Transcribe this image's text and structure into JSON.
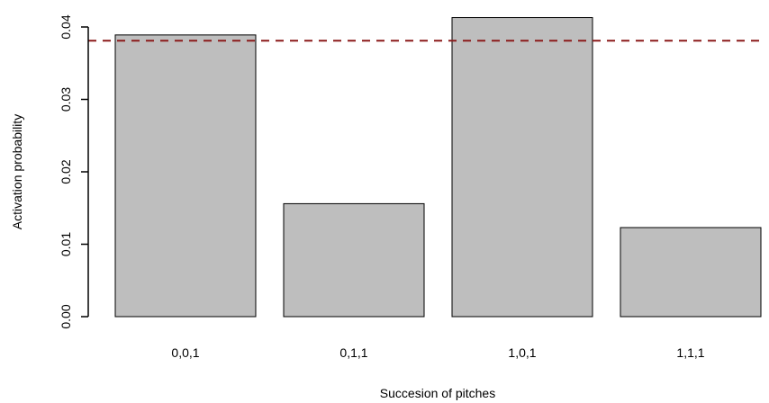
{
  "chart_data": {
    "type": "bar",
    "categories": [
      "0,0,1",
      "0,1,1",
      "1,0,1",
      "1,1,1"
    ],
    "values": [
      0.0389,
      0.0156,
      0.0413,
      0.0123
    ],
    "xlabel": "Succesion of pitches",
    "ylabel": "Activation probability",
    "ylim": [
      0,
      0.04
    ],
    "yticks": [
      "0.00",
      "0.01",
      "0.02",
      "0.03",
      "0.04"
    ],
    "ytick_values": [
      0,
      0.01,
      0.02,
      0.03,
      0.04
    ],
    "reference_line": {
      "value": 0.0381,
      "style": "dashed",
      "color": "#8b1a1a"
    },
    "bar_fill": "#bebebe",
    "bar_stroke": "#000000",
    "grid": false,
    "legend": "none"
  }
}
